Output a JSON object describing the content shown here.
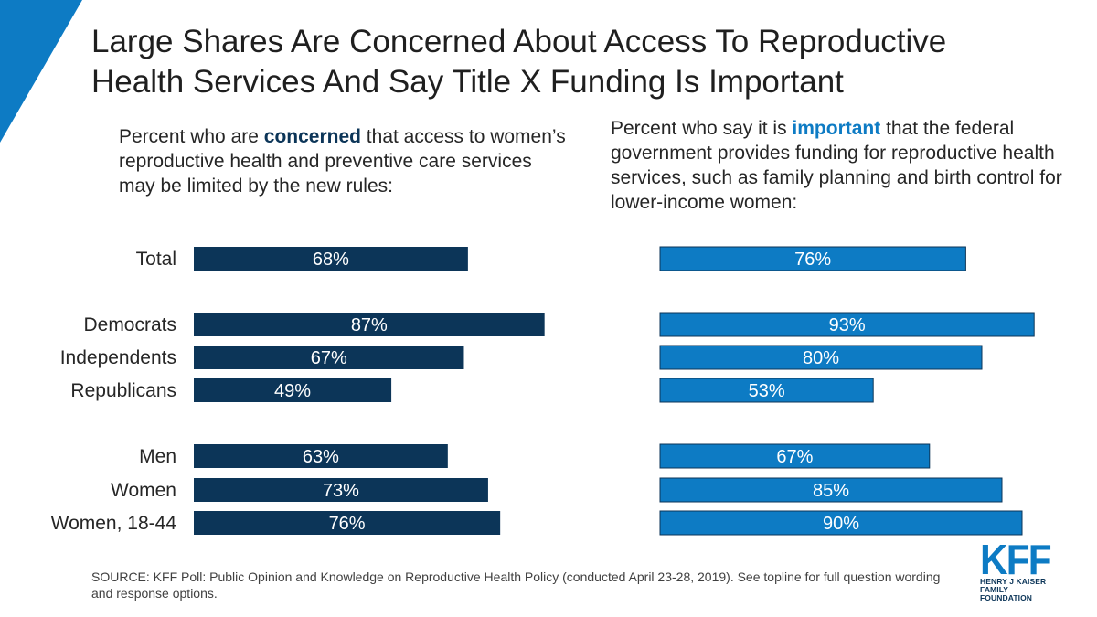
{
  "header": {
    "title_line1": "Large Shares Are Concerned About Access To Reproductive",
    "title_line2": "Health Services And Say Title X Funding Is Important"
  },
  "panels": {
    "left": {
      "prefix": "Percent who are ",
      "keyword": "concerned",
      "suffix": " that access to women’s reproductive health and preventive care services may be limited by the new rules:"
    },
    "right": {
      "prefix": "Percent who say it is ",
      "keyword": "important",
      "suffix": " that the federal government provides funding for reproductive health services, such as family planning and birth control for lower-income women:"
    }
  },
  "colors": {
    "concerned": "#0c3558",
    "important": "#0d7bc4",
    "accent_corner": "#0d7bc4"
  },
  "chart_data": [
    {
      "type": "bar",
      "orientation": "horizontal",
      "title": "Percent who are concerned that access to women’s reproductive health and preventive care services may be limited by the new rules:",
      "categories": [
        "Total",
        "Democrats",
        "Independents",
        "Republicans",
        "Men",
        "Women",
        "Women, 18-44"
      ],
      "values": [
        68,
        87,
        67,
        49,
        63,
        73,
        76
      ],
      "value_labels": [
        "68%",
        "87%",
        "67%",
        "49%",
        "63%",
        "73%",
        "76%"
      ],
      "unit": "%",
      "xlim": [
        0,
        100
      ],
      "grid": false
    },
    {
      "type": "bar",
      "orientation": "horizontal",
      "title": "Percent who say it is important that the federal government provides funding for reproductive health services, such as family planning and birth control for lower-income women:",
      "categories": [
        "Total",
        "Democrats",
        "Independents",
        "Republicans",
        "Men",
        "Women",
        "Women, 18-44"
      ],
      "values": [
        76,
        93,
        80,
        53,
        67,
        85,
        90
      ],
      "value_labels": [
        "76%",
        "93%",
        "80%",
        "53%",
        "67%",
        "85%",
        "90%"
      ],
      "unit": "%",
      "xlim": [
        0,
        100
      ],
      "grid": false
    }
  ],
  "footer": {
    "source": "SOURCE: KFF Poll: Public Opinion and Knowledge on Reproductive Health Policy (conducted April 23-28, 2019). See topline for full question wording and response options."
  },
  "logo": {
    "word": "KFF",
    "line1": "HENRY J KAISER",
    "line2": "FAMILY FOUNDATION"
  }
}
